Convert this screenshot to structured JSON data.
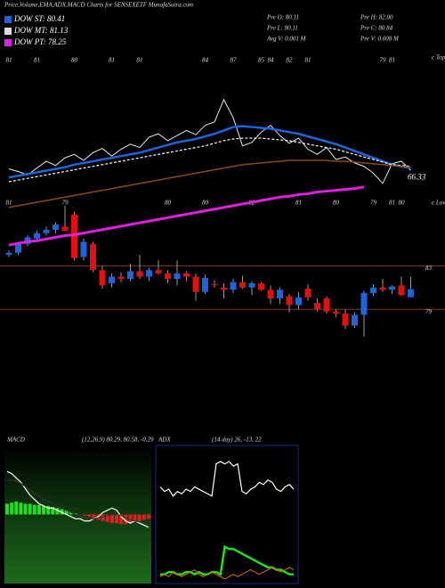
{
  "chart_data": [
    {
      "type": "candlestick",
      "title": "Price,Volume,EMA,ADX,MACD Charts for SENSEXETF MunafaSutra.com",
      "legend": [
        {
          "label": "DOW ST: 80.41",
          "color": "#1e64dc"
        },
        {
          "label": "DOW MT: 81.13",
          "color": "#dddddd"
        },
        {
          "label": "DOW PT: 78.25",
          "color": "#e020e0"
        }
      ],
      "info": [
        "Pre  O: 80.11",
        "Pre  H: 82.00",
        "Pre  L: 80.11",
        "Pre  C: 80.84",
        "Avg V: 0.001 M",
        "Pre  V: 0.008 M"
      ],
      "up_color": "#1e64dc",
      "down_color": "#e01010",
      "open": [
        84.0,
        84.2,
        85.0,
        85.5,
        86.0,
        86.3,
        86.6,
        87.7,
        83.8,
        85.0,
        82.6,
        81.4,
        82.0,
        81.8,
        82.5,
        82.0,
        82.6,
        82.3,
        81.8,
        82.3,
        82.0,
        80.6,
        81.3,
        81.0,
        80.8,
        81.5,
        81.0,
        81.4,
        80.8,
        80.0,
        80.2,
        79.4,
        80.9,
        79.6,
        80.0,
        78.8,
        78.6,
        77.5,
        78.5,
        80.5,
        81.0,
        80.8,
        81.2,
        80.11
      ],
      "high": [
        84.4,
        85.2,
        85.8,
        86.2,
        86.6,
        87.0,
        88.5,
        88.0,
        85.5,
        85.2,
        83.0,
        82.3,
        82.4,
        83.2,
        84.0,
        82.8,
        83.5,
        82.6,
        83.5,
        82.5,
        82.3,
        82.2,
        81.7,
        81.4,
        81.8,
        82.1,
        81.6,
        81.5,
        81.2,
        81.0,
        80.4,
        80.6,
        81.3,
        80.0,
        80.2,
        79.0,
        79.0,
        78.7,
        80.7,
        81.3,
        81.8,
        81.2,
        82.0,
        82.0
      ],
      "low": [
        83.8,
        84.0,
        84.8,
        85.3,
        85.8,
        86.0,
        86.2,
        83.5,
        83.5,
        82.4,
        80.9,
        81.0,
        81.5,
        81.6,
        81.8,
        81.6,
        82.2,
        81.4,
        81.2,
        81.6,
        79.8,
        80.4,
        81.0,
        80.0,
        80.5,
        80.9,
        80.3,
        80.7,
        79.5,
        79.5,
        78.7,
        79.0,
        79.8,
        78.8,
        78.6,
        78.3,
        77.2,
        77.3,
        76.5,
        80.2,
        80.6,
        80.4,
        80.2,
        80.11
      ],
      "close": [
        84.2,
        85.0,
        85.6,
        86.0,
        86.3,
        86.8,
        86.2,
        83.7,
        85.2,
        82.6,
        81.2,
        82.0,
        81.8,
        82.5,
        82.0,
        82.6,
        82.3,
        81.8,
        82.3,
        82.0,
        80.6,
        81.9,
        81.2,
        80.8,
        81.5,
        81.0,
        81.4,
        80.8,
        80.0,
        80.8,
        79.4,
        80.1,
        80.1,
        79.0,
        78.8,
        78.6,
        77.5,
        78.5,
        80.5,
        81.0,
        80.8,
        81.1,
        80.3,
        80.84
      ],
      "ylim": [
        75.5,
        102.5
      ],
      "yticks": [
        83,
        79
      ],
      "line_color": "#7a3d1a",
      "top_caption": "c Tops",
      "low_caption": "c Lows",
      "top_labels": [
        {
          "index": 0,
          "label": "81"
        },
        {
          "index": 3,
          "label": "81"
        },
        {
          "index": 7,
          "label": "80"
        },
        {
          "index": 11,
          "label": "81"
        },
        {
          "index": 14,
          "label": "81"
        },
        {
          "index": 21,
          "label": "84"
        },
        {
          "index": 24,
          "label": "87"
        },
        {
          "index": 27,
          "label": "85"
        },
        {
          "index": 28,
          "label": "84"
        },
        {
          "index": 30,
          "label": "82"
        },
        {
          "index": 32,
          "label": "81"
        },
        {
          "index": 40,
          "label": "79"
        },
        {
          "index": 41,
          "label": "81"
        }
      ],
      "low_labels": [
        {
          "index": 0,
          "label": "81"
        },
        {
          "index": 6,
          "label": "79"
        },
        {
          "index": 17,
          "label": "80"
        },
        {
          "index": 21,
          "label": "80"
        },
        {
          "index": 26,
          "label": "82"
        },
        {
          "index": 31,
          "label": "81"
        },
        {
          "index": 35,
          "label": "80"
        },
        {
          "index": 39,
          "label": "79"
        },
        {
          "index": 41,
          "label": "81"
        },
        {
          "index": 42,
          "label": "80"
        }
      ]
    },
    {
      "type": "line",
      "ylim": [
        55,
        80
      ],
      "end_label": 66.33,
      "series": [
        {
          "color": "#e8e8e8",
          "width": 1,
          "dash": false,
          "values": [
            66.5,
            66.2,
            65.8,
            66.6,
            67.4,
            66.9,
            67.8,
            68.2,
            67.5,
            68.4,
            68.9,
            68.0,
            68.8,
            69.4,
            69.0,
            70.2,
            70.6,
            69.8,
            70.4,
            71.0,
            70.5,
            71.6,
            72.0,
            74.6,
            72.5,
            69.2,
            69.6,
            70.8,
            71.6,
            70.4,
            69.5,
            70.1,
            68.8,
            68.2,
            69.0,
            67.6,
            67.9,
            67.2,
            66.8,
            66.0,
            64.8,
            67.1,
            67.4,
            66.33
          ]
        },
        {
          "color": "#1e64dc",
          "width": 2.5,
          "dash": false,
          "values": [
            65.5,
            65.7,
            65.9,
            66.1,
            66.3,
            66.5,
            66.7,
            67.0,
            67.2,
            67.4,
            67.6,
            67.8,
            68.0,
            68.2,
            68.4,
            68.7,
            69.0,
            69.3,
            69.6,
            69.8,
            70.0,
            70.3,
            70.6,
            71.0,
            71.4,
            71.5,
            71.4,
            71.3,
            71.2,
            71.0,
            70.8,
            70.6,
            70.3,
            70.0,
            69.7,
            69.4,
            69.0,
            68.6,
            68.2,
            67.8,
            67.4,
            67.0,
            66.8,
            66.6
          ]
        },
        {
          "color": "#ffffff",
          "width": 1.2,
          "dash": true,
          "values": [
            65.0,
            65.2,
            65.4,
            65.6,
            65.8,
            66.0,
            66.2,
            66.4,
            66.6,
            66.8,
            67.0,
            67.2,
            67.4,
            67.6,
            67.8,
            68.0,
            68.2,
            68.4,
            68.6,
            68.8,
            69.0,
            69.2,
            69.5,
            69.8,
            70.0,
            70.1,
            70.1,
            70.1,
            70.0,
            69.9,
            69.8,
            69.6,
            69.4,
            69.2,
            69.0,
            68.8,
            68.5,
            68.2,
            67.9,
            67.6,
            67.3,
            67.0,
            66.9,
            66.8
          ]
        },
        {
          "color": "#8b4a1c",
          "width": 1.5,
          "dash": false,
          "values": [
            62.0,
            62.2,
            62.4,
            62.6,
            62.8,
            63.0,
            63.2,
            63.4,
            63.6,
            63.8,
            64.0,
            64.2,
            64.4,
            64.6,
            64.8,
            65.0,
            65.2,
            65.4,
            65.6,
            65.8,
            66.0,
            66.2,
            66.4,
            66.6,
            66.8,
            67.0,
            67.1,
            67.2,
            67.3,
            67.4,
            67.5,
            67.5,
            67.5,
            67.5,
            67.5,
            67.4,
            67.4,
            67.3,
            67.2,
            67.1,
            67.0,
            66.9,
            66.8,
            66.7
          ]
        },
        {
          "color": "#e020e0",
          "width": 3,
          "dash": false,
          "values": [
            57.6,
            57.8,
            58.0,
            58.1,
            58.3,
            58.5,
            58.7,
            58.8,
            59.0,
            59.2,
            59.4,
            59.6,
            59.8,
            60.0,
            60.2,
            60.4,
            60.6,
            60.8,
            61.0,
            61.2,
            61.4,
            61.6,
            61.8,
            62.0,
            62.2,
            62.4,
            62.6,
            62.8,
            63.0,
            63.2,
            63.3,
            63.5,
            63.6,
            63.8,
            63.9,
            64.0,
            64.1,
            64.2,
            64.4,
            null,
            null,
            null,
            null,
            null
          ]
        }
      ]
    },
    {
      "type": "macd",
      "title": "MACD",
      "subtitle": "(12,26,9) 80.29, 80.58, -0.29",
      "ylim": [
        -3,
        3
      ],
      "pos_color": "#22dd22",
      "neg_color": "#dd2222",
      "histogram": [
        0.5,
        0.55,
        0.6,
        0.55,
        0.5,
        0.5,
        0.45,
        0.45,
        0.4,
        0.4,
        0.35,
        0.3,
        0.25,
        0.2,
        0.1,
        0.05,
        0,
        -0.05,
        -0.1,
        -0.2,
        -0.25,
        -0.3,
        -0.35,
        -0.4,
        -0.4,
        -0.45,
        -0.45,
        -0.4,
        -0.35,
        -0.3,
        -0.25,
        -0.2
      ],
      "series": [
        {
          "color": "#ffffff",
          "values": [
            2.0,
            1.9,
            1.7,
            1.5,
            1.2,
            0.9,
            0.7,
            0.5,
            0.4,
            0.3,
            0.3,
            0.2,
            0.1,
            0.0,
            -0.1,
            -0.2,
            -0.2,
            -0.3,
            -0.3,
            -0.2,
            -0.1,
            0.1,
            0.2,
            0.3,
            0.2,
            -0.1,
            -0.3,
            -0.4,
            -0.3,
            -0.4,
            -0.5,
            -0.6
          ]
        },
        {
          "color": "#333333",
          "values": [
            1.6,
            1.6,
            1.55,
            1.45,
            1.3,
            1.15,
            1.0,
            0.85,
            0.7,
            0.6,
            0.5,
            0.4,
            0.3,
            0.2,
            0.1,
            0.0,
            -0.1,
            -0.15,
            -0.2,
            -0.2,
            -0.15,
            -0.1,
            -0.05,
            0.0,
            0.0,
            -0.05,
            -0.15,
            -0.25,
            -0.3,
            -0.35,
            -0.4,
            -0.5
          ]
        }
      ]
    },
    {
      "type": "adx",
      "title": "ADX",
      "subtitle": "(14 day) 26, -13, 22",
      "ylim": [
        0,
        60
      ],
      "series": [
        {
          "color": "#ffffff",
          "width": 1.2,
          "values": [
            42,
            40,
            41,
            38,
            40,
            39,
            41,
            40,
            42,
            41,
            40,
            39,
            38,
            52,
            53,
            52,
            53,
            51,
            52,
            40,
            39,
            41,
            42,
            44,
            43,
            45,
            44,
            41,
            40,
            42,
            43,
            41
          ]
        },
        {
          "color": "#22dd22",
          "width": 2.5,
          "values": [
            4,
            4,
            5,
            5,
            4,
            4,
            5,
            5,
            4,
            5,
            4,
            4,
            5,
            5,
            4,
            16,
            15,
            15,
            14,
            13,
            12,
            11,
            10,
            9,
            8,
            7,
            7,
            6,
            6,
            5,
            4,
            4
          ]
        },
        {
          "color": "#d2691e",
          "width": 1,
          "values": [
            3,
            4,
            3,
            5,
            4,
            3,
            4,
            5,
            6,
            4,
            3,
            4,
            5,
            4,
            3,
            2,
            3,
            4,
            3,
            4,
            5,
            6,
            5,
            4,
            5,
            6,
            7,
            6,
            5,
            6,
            7,
            6
          ]
        }
      ]
    }
  ]
}
